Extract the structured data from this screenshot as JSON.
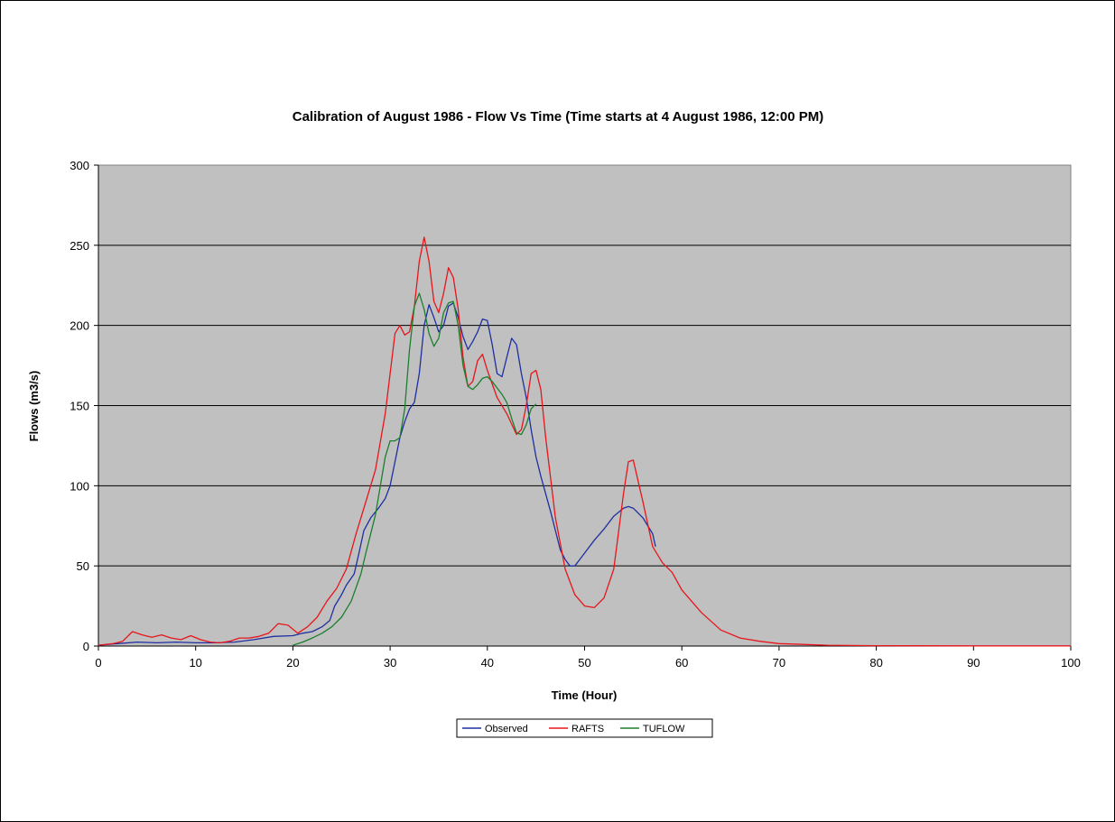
{
  "chart_data": {
    "type": "line",
    "title": "Calibration of August 1986 - Flow Vs Time (Time starts at 4 August 1986, 12:00 PM)",
    "xlabel": "Time (Hour)",
    "ylabel": "Flows (m3/s)",
    "xlim": [
      0,
      100
    ],
    "ylim": [
      0,
      300
    ],
    "xticks": [
      0,
      10,
      20,
      30,
      40,
      50,
      60,
      70,
      80,
      90,
      100
    ],
    "yticks": [
      0,
      50,
      100,
      150,
      200,
      250,
      300
    ],
    "grid": "horizontal",
    "plot_background": "#c0c0c0",
    "legend_position": "bottom",
    "series": [
      {
        "name": "Observed",
        "color": "#1f2fa0",
        "x": [
          0,
          2,
          4,
          6,
          8,
          10,
          12,
          14,
          16,
          18,
          20,
          21,
          22,
          23,
          23.8,
          24.3,
          25,
          25.5,
          26.3,
          26.8,
          27.3,
          28,
          28.8,
          29.5,
          30,
          30.5,
          31,
          31.5,
          32,
          32.5,
          33,
          33.5,
          34,
          34.5,
          35,
          35.5,
          36,
          36.5,
          37,
          37.5,
          38,
          38.5,
          39,
          39.5,
          40,
          40.5,
          41,
          41.5,
          42,
          42.5,
          43,
          43.5,
          44,
          44.5,
          45,
          45.5,
          46,
          46.5,
          47,
          47.5,
          48,
          48.5,
          49,
          49.5,
          50,
          51,
          52,
          53,
          54,
          54.5,
          55,
          56,
          57,
          57.3
        ],
        "y": [
          0.5,
          1.5,
          2.5,
          2,
          2.5,
          2,
          2,
          2.5,
          4,
          6,
          6.5,
          8,
          9,
          12,
          16,
          25,
          32,
          38,
          45,
          58,
          72,
          80,
          86,
          92,
          100,
          115,
          130,
          140,
          148,
          152,
          170,
          200,
          213,
          205,
          196,
          200,
          212,
          214,
          205,
          193,
          185,
          190,
          196,
          204,
          203,
          188,
          170,
          168,
          180,
          192,
          188,
          170,
          155,
          135,
          118,
          106,
          95,
          84,
          72,
          60,
          54,
          50,
          50,
          54,
          58,
          66,
          73,
          81,
          86,
          87,
          86,
          80,
          70,
          62
        ]
      },
      {
        "name": "RAFTS",
        "color": "#e8151b",
        "x": [
          0,
          1.5,
          2.5,
          3.5,
          4.5,
          5.5,
          6.5,
          7.5,
          8.5,
          9.5,
          10.5,
          11.5,
          12.5,
          13.5,
          14.5,
          15.5,
          16.5,
          17.5,
          18.5,
          19.5,
          20.5,
          21.5,
          22.5,
          23.5,
          24.5,
          25.5,
          26.5,
          27.5,
          28.5,
          29.5,
          30,
          30.5,
          31,
          31.5,
          32,
          32.5,
          33,
          33.5,
          34,
          34.5,
          35,
          35.5,
          36,
          36.5,
          37,
          37.5,
          38,
          38.5,
          39,
          39.5,
          40,
          41,
          42,
          43,
          43.5,
          44,
          44.5,
          45,
          45.5,
          46,
          47,
          48,
          49,
          50,
          51,
          52,
          53,
          54,
          54.5,
          55,
          56,
          57,
          58,
          59,
          60,
          62,
          64,
          66,
          68,
          70,
          75,
          80,
          90,
          100
        ],
        "y": [
          0.5,
          1.5,
          3,
          9,
          7,
          5.5,
          7,
          5,
          4,
          6.5,
          4,
          2.5,
          2,
          3,
          5,
          5,
          6,
          8,
          14,
          13,
          8,
          12,
          18,
          28,
          36,
          48,
          70,
          90,
          110,
          145,
          170,
          195,
          200,
          194,
          196,
          212,
          240,
          255,
          240,
          215,
          208,
          220,
          236,
          230,
          210,
          180,
          162,
          165,
          178,
          182,
          172,
          155,
          145,
          132,
          135,
          150,
          170,
          172,
          160,
          130,
          80,
          48,
          32,
          25,
          24,
          30,
          48,
          95,
          115,
          116,
          90,
          62,
          52,
          46,
          35,
          21,
          10,
          5,
          3,
          1.5,
          0.5,
          0.2,
          0.1,
          0.1
        ]
      },
      {
        "name": "TUFLOW",
        "color": "#1b7f2c",
        "x": [
          20,
          21,
          22,
          23,
          24,
          25,
          26,
          27,
          27.5,
          28,
          28.5,
          29,
          29.5,
          30,
          30.5,
          31,
          31.5,
          32,
          32.5,
          33,
          33.5,
          34,
          34.5,
          35,
          35.5,
          36,
          36.5,
          37,
          37.5,
          38,
          38.5,
          39,
          39.5,
          40,
          40.5,
          41,
          41.5,
          42,
          42.5,
          43,
          43.5,
          44,
          44.5,
          45
        ],
        "y": [
          0.5,
          2.5,
          5,
          8,
          12,
          18,
          28,
          45,
          58,
          70,
          82,
          100,
          118,
          128,
          128,
          130,
          148,
          185,
          212,
          220,
          210,
          195,
          187,
          192,
          208,
          214,
          215,
          200,
          175,
          162,
          160,
          163,
          167,
          168,
          165,
          161,
          157,
          152,
          142,
          133,
          132,
          138,
          148,
          151
        ]
      }
    ]
  }
}
